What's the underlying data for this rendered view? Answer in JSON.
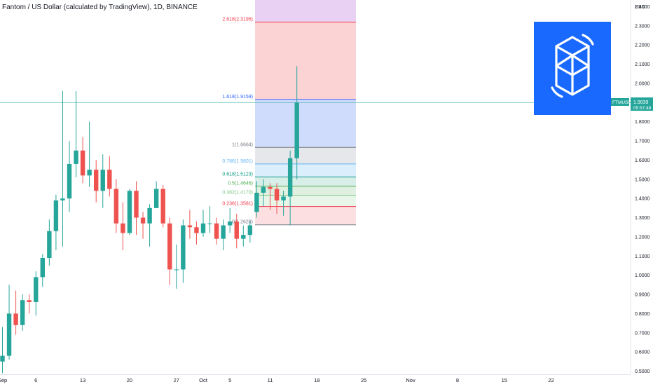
{
  "header": {
    "title": "Fantom / US Dollar (calculated by TradingView), 1D, BINANCE"
  },
  "price_axis": {
    "currency": "USD",
    "ticks": [
      "2.4000",
      "2.3000",
      "2.2000",
      "2.1000",
      "2.0000",
      "1.9000",
      "1.8000",
      "1.7000",
      "1.6000",
      "1.5000",
      "1.4000",
      "1.3000",
      "1.2000",
      "1.1000",
      "1.0000",
      "0.9000",
      "0.8000",
      "0.7000",
      "0.6000",
      "0.5000"
    ],
    "last_price_label": {
      "symbol": "FTMUSD",
      "price": "1.9039",
      "countdown": "05:57:48"
    }
  },
  "time_axis": {
    "labels": [
      "Sep",
      "6",
      "13",
      "20",
      "27",
      "Oct",
      "5",
      "11",
      "18",
      "25",
      "Nov",
      "8",
      "15",
      "22"
    ]
  },
  "colors": {
    "up": "#26a69a",
    "down": "#ef5350",
    "last_price_line": "#26a69a",
    "logo_bg": "#1969ff"
  },
  "logo": {
    "icon": "fantom-logo-icon"
  },
  "fib": {
    "levels": [
      {
        "label": "0(1.2628)",
        "value": 1.2628,
        "color": "#787b86",
        "fill": ""
      },
      {
        "label": "0.236(1.3581)",
        "value": 1.3581,
        "color": "#f23645",
        "fill": "#fce0e1"
      },
      {
        "label": "0.382(1.4170)",
        "value": 1.417,
        "color": "#81c784",
        "fill": "#e8f5e9"
      },
      {
        "label": "0.5(1.4646)",
        "value": 1.4646,
        "color": "#4caf50",
        "fill": "#dff0e0"
      },
      {
        "label": "0.618(1.5123)",
        "value": 1.5123,
        "color": "#089981",
        "fill": "#d7eee9"
      },
      {
        "label": "0.786(1.5801)",
        "value": 1.5801,
        "color": "#64b5f6",
        "fill": "#dbeefc"
      },
      {
        "label": "1(1.6664)",
        "value": 1.6664,
        "color": "#787b86",
        "fill": "#e6e7ea"
      },
      {
        "label": "1.618(1.9159)",
        "value": 1.9159,
        "color": "#2962ff",
        "fill": "#cfdcfb"
      },
      {
        "label": "2.618(2.3195)",
        "value": 2.3195,
        "color": "#f23645",
        "fill": "#fcd3d5"
      },
      {
        "label": "",
        "value": 2.45,
        "color": "",
        "fill": "#e8d1f3"
      }
    ]
  },
  "chart_data": {
    "type": "candlestick",
    "symbol": "FTMUSD",
    "interval": "1D",
    "exchange": "BINANCE",
    "ylim": [
      0.48,
      2.44
    ],
    "y_ticks": [
      2.4,
      2.3,
      2.2,
      2.1,
      2.0,
      1.9,
      1.8,
      1.7,
      1.6,
      1.5,
      1.4,
      1.3,
      1.2,
      1.1,
      1.0,
      0.9,
      0.8,
      0.7,
      0.6,
      0.5
    ],
    "x_labels": [
      {
        "label": "Sep",
        "day": 0
      },
      {
        "label": "6",
        "day": 5
      },
      {
        "label": "13",
        "day": 12
      },
      {
        "label": "20",
        "day": 19
      },
      {
        "label": "27",
        "day": 26
      },
      {
        "label": "Oct",
        "day": 30
      },
      {
        "label": "5",
        "day": 34
      },
      {
        "label": "11",
        "day": 40
      },
      {
        "label": "18",
        "day": 47
      },
      {
        "label": "25",
        "day": 54
      },
      {
        "label": "Nov",
        "day": 61
      },
      {
        "label": "8",
        "day": 68
      },
      {
        "label": "15",
        "day": 75
      },
      {
        "label": "22",
        "day": 82
      }
    ],
    "candles": [
      {
        "date": "2021-08-30",
        "open": 0.55,
        "high": 0.73,
        "low": 0.49,
        "close": 0.58
      },
      {
        "date": "2021-08-31",
        "open": 0.58,
        "high": 0.95,
        "low": 0.56,
        "close": 0.8
      },
      {
        "date": "2021-09-01",
        "open": 0.8,
        "high": 0.92,
        "low": 0.69,
        "close": 0.74
      },
      {
        "date": "2021-09-02",
        "open": 0.74,
        "high": 0.9,
        "low": 0.71,
        "close": 0.87
      },
      {
        "date": "2021-09-03",
        "open": 0.87,
        "high": 0.9,
        "low": 0.8,
        "close": 0.86
      },
      {
        "date": "2021-09-04",
        "open": 0.86,
        "high": 1.02,
        "low": 0.79,
        "close": 0.99
      },
      {
        "date": "2021-09-05",
        "open": 0.99,
        "high": 1.11,
        "low": 0.94,
        "close": 1.09
      },
      {
        "date": "2021-09-06",
        "open": 1.09,
        "high": 1.29,
        "low": 1.05,
        "close": 1.23
      },
      {
        "date": "2021-09-07",
        "open": 1.23,
        "high": 1.42,
        "low": 1.13,
        "close": 1.39
      },
      {
        "date": "2021-09-08",
        "open": 1.39,
        "high": 1.96,
        "low": 1.15,
        "close": 1.4
      },
      {
        "date": "2021-09-09",
        "open": 1.4,
        "high": 1.7,
        "low": 1.33,
        "close": 1.58
      },
      {
        "date": "2021-09-10",
        "open": 1.58,
        "high": 1.96,
        "low": 1.51,
        "close": 1.65
      },
      {
        "date": "2021-09-11",
        "open": 1.65,
        "high": 1.72,
        "low": 1.48,
        "close": 1.52
      },
      {
        "date": "2021-09-12",
        "open": 1.52,
        "high": 1.8,
        "low": 1.46,
        "close": 1.55
      },
      {
        "date": "2021-09-13",
        "open": 1.55,
        "high": 1.6,
        "low": 1.38,
        "close": 1.44
      },
      {
        "date": "2021-09-14",
        "open": 1.44,
        "high": 1.63,
        "low": 1.35,
        "close": 1.55
      },
      {
        "date": "2021-09-15",
        "open": 1.55,
        "high": 1.62,
        "low": 1.41,
        "close": 1.45
      },
      {
        "date": "2021-09-16",
        "open": 1.45,
        "high": 1.5,
        "low": 1.22,
        "close": 1.27
      },
      {
        "date": "2021-09-17",
        "open": 1.27,
        "high": 1.38,
        "low": 1.13,
        "close": 1.22
      },
      {
        "date": "2021-09-18",
        "open": 1.22,
        "high": 1.45,
        "low": 1.21,
        "close": 1.44
      },
      {
        "date": "2021-09-19",
        "open": 1.44,
        "high": 1.49,
        "low": 1.21,
        "close": 1.3
      },
      {
        "date": "2021-09-20",
        "open": 1.3,
        "high": 1.33,
        "low": 1.19,
        "close": 1.27
      },
      {
        "date": "2021-09-21",
        "open": 1.27,
        "high": 1.37,
        "low": 1.15,
        "close": 1.35
      },
      {
        "date": "2021-09-22",
        "open": 1.35,
        "high": 1.49,
        "low": 1.35,
        "close": 1.45
      },
      {
        "date": "2021-09-23",
        "open": 1.45,
        "high": 1.47,
        "low": 1.25,
        "close": 1.27
      },
      {
        "date": "2021-09-24",
        "open": 1.27,
        "high": 1.3,
        "low": 0.95,
        "close": 1.03
      },
      {
        "date": "2021-09-25",
        "open": 1.03,
        "high": 1.16,
        "low": 0.93,
        "close": 1.03
      },
      {
        "date": "2021-09-26",
        "open": 1.03,
        "high": 1.29,
        "low": 0.96,
        "close": 1.26
      },
      {
        "date": "2021-09-27",
        "open": 1.26,
        "high": 1.34,
        "low": 1.19,
        "close": 1.25
      },
      {
        "date": "2021-09-28",
        "open": 1.25,
        "high": 1.28,
        "low": 1.16,
        "close": 1.22
      },
      {
        "date": "2021-09-29",
        "open": 1.22,
        "high": 1.34,
        "low": 1.2,
        "close": 1.27
      },
      {
        "date": "2021-09-30",
        "open": 1.27,
        "high": 1.36,
        "low": 1.22,
        "close": 1.27
      },
      {
        "date": "2021-10-01",
        "open": 1.27,
        "high": 1.3,
        "low": 1.16,
        "close": 1.19
      },
      {
        "date": "2021-10-02",
        "open": 1.19,
        "high": 1.29,
        "low": 1.13,
        "close": 1.26
      },
      {
        "date": "2021-10-03",
        "open": 1.26,
        "high": 1.35,
        "low": 1.22,
        "close": 1.28
      },
      {
        "date": "2021-10-04",
        "open": 1.28,
        "high": 1.32,
        "low": 1.14,
        "close": 1.19
      },
      {
        "date": "2021-10-05",
        "open": 1.19,
        "high": 1.26,
        "low": 1.15,
        "close": 1.21
      },
      {
        "date": "2021-10-06",
        "open": 1.21,
        "high": 1.28,
        "low": 1.17,
        "close": 1.26
      },
      {
        "date": "2021-10-07",
        "open": 1.33,
        "high": 1.49,
        "low": 1.3,
        "close": 1.43
      },
      {
        "date": "2021-10-08",
        "open": 1.43,
        "high": 1.5,
        "low": 1.36,
        "close": 1.46
      },
      {
        "date": "2021-10-09",
        "open": 1.46,
        "high": 1.48,
        "low": 1.34,
        "close": 1.45
      },
      {
        "date": "2021-10-10",
        "open": 1.45,
        "high": 1.48,
        "low": 1.32,
        "close": 1.39
      },
      {
        "date": "2021-10-11",
        "open": 1.39,
        "high": 1.44,
        "low": 1.31,
        "close": 1.41
      },
      {
        "date": "2021-10-12",
        "open": 1.41,
        "high": 1.65,
        "low": 1.26,
        "close": 1.61
      },
      {
        "date": "2021-10-13",
        "open": 1.61,
        "high": 2.09,
        "low": 1.5,
        "close": 1.9
      }
    ]
  }
}
